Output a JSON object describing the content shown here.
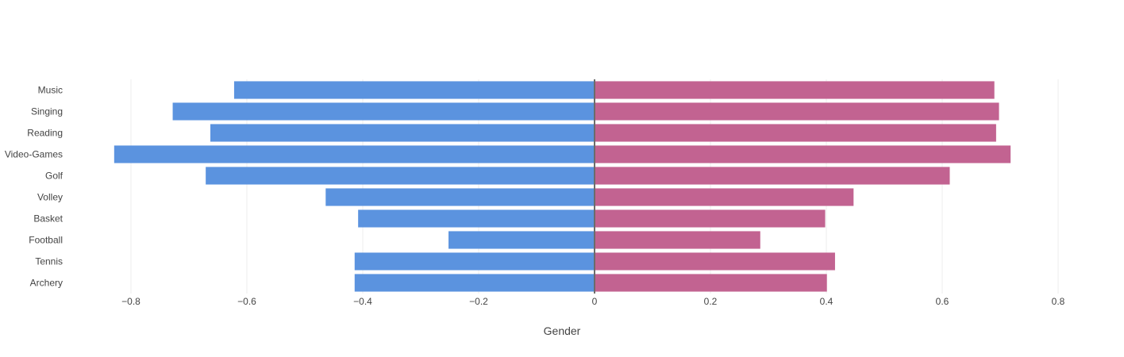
{
  "chart_data": {
    "type": "bar",
    "orientation": "horizontal",
    "barmode": "overlay",
    "title": "",
    "xlabel": "Gender",
    "ylabel": "",
    "xlim": [
      -0.9,
      0.82
    ],
    "xticks": [
      -0.8,
      -0.6,
      -0.4,
      -0.2,
      0,
      0.2,
      0.4,
      0.6,
      0.8
    ],
    "xtick_labels": [
      "−0.8",
      "−0.6",
      "−0.4",
      "−0.2",
      "0",
      "0.2",
      "0.4",
      "0.6",
      "0.8"
    ],
    "grid": true,
    "legend": "none",
    "categories": [
      "Music",
      "Singing",
      "Reading",
      "Video-Games",
      "Golf",
      "Volley",
      "Basket",
      "Football",
      "Tennis",
      "Archery"
    ],
    "series": [
      {
        "color": "#5b93df",
        "values": [
          -0.622,
          -0.728,
          -0.663,
          -0.829,
          -0.671,
          -0.464,
          -0.408,
          -0.252,
          -0.414,
          -0.414
        ]
      },
      {
        "color": "#c26391",
        "values": [
          0.69,
          0.698,
          0.693,
          0.718,
          0.613,
          0.447,
          0.398,
          0.286,
          0.415,
          0.401
        ]
      }
    ]
  }
}
